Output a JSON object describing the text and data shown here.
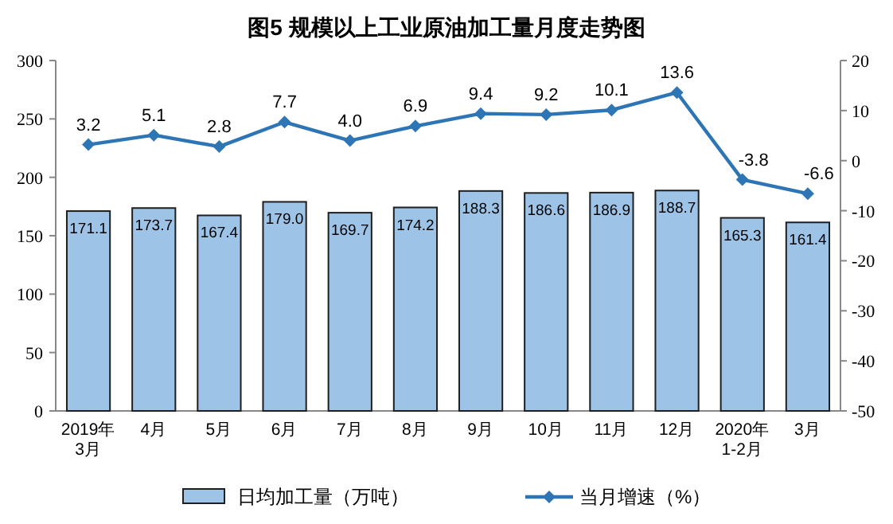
{
  "chart_data": {
    "type": "bar",
    "title": "图5  规模以上工业原油加工量月度走势图",
    "categories": [
      "2019年\n3月",
      "4月",
      "5月",
      "6月",
      "7月",
      "8月",
      "9月",
      "10月",
      "11月",
      "12月",
      "2020年\n1-2月",
      "3月"
    ],
    "series": [
      {
        "name": "日均加工量（万吨）",
        "color": "#9dc3e6",
        "values": [
          171.1,
          173.7,
          167.4,
          179.0,
          169.7,
          174.2,
          188.3,
          186.6,
          186.9,
          188.7,
          165.3,
          161.4
        ],
        "value_labels": [
          "171.1",
          "173.7",
          "167.4",
          "179.0",
          "169.7",
          "174.2",
          "188.3",
          "186.6",
          "186.9",
          "188.7",
          "165.3",
          "161.4"
        ]
      },
      {
        "name": "当月增速（%）",
        "type": "line",
        "axis": "y2",
        "color": "#2e75b6",
        "marker": "diamond",
        "values": [
          3.2,
          5.1,
          2.8,
          7.7,
          4.0,
          6.9,
          9.4,
          9.2,
          10.1,
          13.6,
          -3.8,
          -6.6
        ],
        "value_labels": [
          "3.2",
          "5.1",
          "2.8",
          "7.7",
          "4.0",
          "6.9",
          "9.4",
          "9.2",
          "10.1",
          "13.6",
          "-3.8",
          "-6.6"
        ]
      }
    ],
    "ylim": [
      0,
      300
    ],
    "yticks": [
      0,
      50,
      100,
      150,
      200,
      250,
      300
    ],
    "y2lim": [
      -50,
      20
    ],
    "y2ticks": [
      -50,
      -40,
      -30,
      -20,
      -10,
      0,
      10,
      20
    ],
    "grid": false,
    "legend": "bottom"
  }
}
